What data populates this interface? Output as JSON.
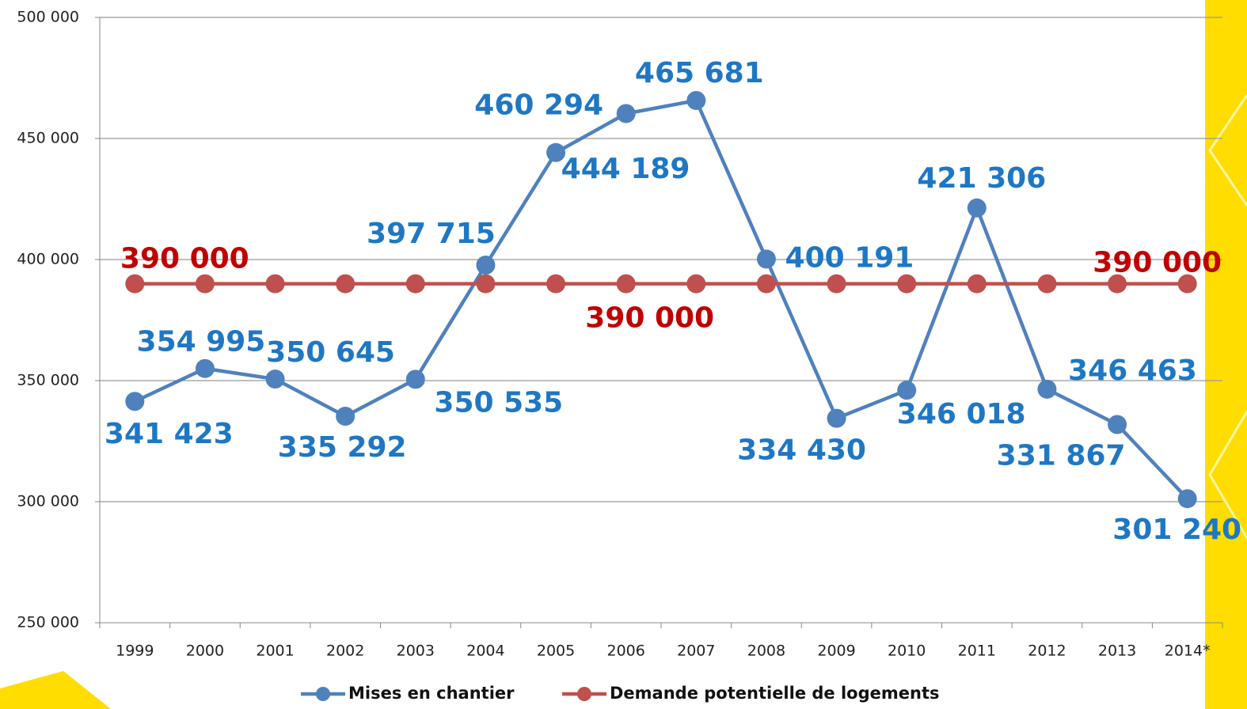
{
  "chart_data": {
    "type": "line",
    "categories": [
      "1999",
      "2000",
      "2001",
      "2002",
      "2003",
      "2004",
      "2005",
      "2006",
      "2007",
      "2008",
      "2009",
      "2010",
      "2011",
      "2012",
      "2013",
      "2014*"
    ],
    "series": [
      {
        "name": "Mises en chantier",
        "color": "#4f81bd",
        "label_color": "#1f77c4",
        "values": [
          341423,
          354995,
          350645,
          335292,
          350535,
          397715,
          444189,
          460294,
          465681,
          400191,
          334430,
          346018,
          421306,
          346463,
          331867,
          301240
        ],
        "value_labels": [
          "341 423",
          "354 995",
          "350 645",
          "335 292",
          "350 535",
          "397 715",
          "444 189",
          "460 294",
          "465 681",
          "400 191",
          "334 430",
          "346 018",
          "421 306",
          "346 463",
          "331 867",
          "301 240"
        ]
      },
      {
        "name": "Demande potentielle de logements",
        "color": "#c0504d",
        "label_color": "#c00000",
        "values": [
          390000,
          390000,
          390000,
          390000,
          390000,
          390000,
          390000,
          390000,
          390000,
          390000,
          390000,
          390000,
          390000,
          390000,
          390000,
          390000
        ],
        "value_labels": [
          "390 000",
          null,
          null,
          null,
          null,
          null,
          null,
          "390 000",
          null,
          null,
          null,
          null,
          null,
          null,
          null,
          "390 000"
        ]
      }
    ],
    "ylim": [
      250000,
      500000
    ],
    "yticks": [
      {
        "value": 250000,
        "label": "250 000"
      },
      {
        "value": 300000,
        "label": "300 000"
      },
      {
        "value": 350000,
        "label": "350 000"
      },
      {
        "value": 400000,
        "label": "400 000"
      },
      {
        "value": 450000,
        "label": "450 000"
      },
      {
        "value": 500000,
        "label": "500 000"
      }
    ],
    "grid": true,
    "legend": "bottom"
  }
}
